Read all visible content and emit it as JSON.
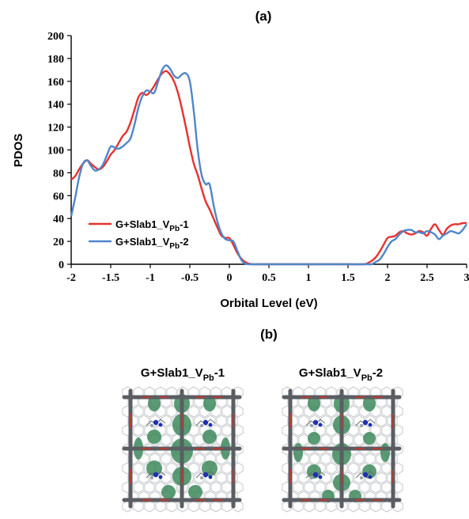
{
  "panel_a_label": "(a)",
  "panel_b_label": "(b)",
  "colors": {
    "series1": "#e8312f",
    "series2": "#4f86c9",
    "orbital_green": "#3e8a5c",
    "bond_red": "#c0392b",
    "frame_grey": "#5a5e63",
    "atom_blue": "#1f2fb0"
  },
  "chart_data": {
    "type": "line",
    "title": "",
    "xlabel": "Orbital Level (eV)",
    "ylabel": "PDOS",
    "xlim": [
      -2,
      3
    ],
    "ylim": [
      0,
      200
    ],
    "xticks": [
      -2,
      -1.5,
      -1,
      -0.5,
      0,
      0.5,
      1,
      1.5,
      2,
      2.5,
      3
    ],
    "yticks": [
      0,
      20,
      40,
      60,
      80,
      100,
      120,
      140,
      160,
      180,
      200
    ],
    "grid": false,
    "legend_position": "lower-left",
    "series": [
      {
        "name_parts": [
          "G+Slab1_V",
          "Pb",
          "-1"
        ],
        "color": "#e8312f",
        "x": [
          -2,
          -1.95,
          -1.9,
          -1.85,
          -1.8,
          -1.75,
          -1.7,
          -1.65,
          -1.6,
          -1.55,
          -1.5,
          -1.45,
          -1.4,
          -1.35,
          -1.3,
          -1.25,
          -1.2,
          -1.15,
          -1.1,
          -1.05,
          -1.0,
          -0.95,
          -0.9,
          -0.85,
          -0.8,
          -0.75,
          -0.7,
          -0.65,
          -0.6,
          -0.55,
          -0.5,
          -0.45,
          -0.4,
          -0.35,
          -0.3,
          -0.25,
          -0.2,
          -0.15,
          -0.1,
          -0.05,
          0,
          0.05,
          0.1,
          0.15,
          0.2,
          0.25,
          0.3,
          0.35,
          0.5,
          1.0,
          1.5,
          1.7,
          1.75,
          1.8,
          1.85,
          1.9,
          1.95,
          2.0,
          2.05,
          2.1,
          2.15,
          2.2,
          2.25,
          2.3,
          2.35,
          2.4,
          2.45,
          2.5,
          2.55,
          2.6,
          2.65,
          2.7,
          2.75,
          2.8,
          2.85,
          2.9,
          2.95,
          3.0
        ],
        "y": [
          74,
          77,
          83,
          88,
          91,
          88,
          85,
          83,
          85,
          90,
          96,
          100,
          106,
          112,
          116,
          124,
          135,
          146,
          150,
          148,
          151,
          156,
          162,
          167,
          169,
          166,
          160,
          150,
          136,
          120,
          103,
          88,
          78,
          66,
          55,
          48,
          40,
          32,
          25,
          23,
          23,
          17,
          10,
          5,
          2,
          0.5,
          0,
          0,
          0,
          0,
          0,
          0,
          1,
          3,
          6,
          11,
          17,
          23,
          24,
          25,
          28,
          29,
          27,
          26,
          27,
          29,
          28,
          25,
          31,
          35,
          30,
          26,
          31,
          34,
          35,
          35,
          36,
          36
        ]
      },
      {
        "name_parts": [
          "G+Slab1_V",
          "Pb",
          "-2"
        ],
        "color": "#4f86c9",
        "x": [
          -2,
          -1.95,
          -1.9,
          -1.85,
          -1.8,
          -1.75,
          -1.7,
          -1.65,
          -1.6,
          -1.55,
          -1.5,
          -1.45,
          -1.4,
          -1.35,
          -1.3,
          -1.25,
          -1.2,
          -1.15,
          -1.1,
          -1.05,
          -1.0,
          -0.95,
          -0.9,
          -0.85,
          -0.8,
          -0.75,
          -0.7,
          -0.65,
          -0.6,
          -0.55,
          -0.5,
          -0.45,
          -0.4,
          -0.35,
          -0.3,
          -0.25,
          -0.2,
          -0.15,
          -0.1,
          -0.05,
          0,
          0.05,
          0.1,
          0.15,
          0.2,
          0.25,
          0.3,
          0.35,
          0.5,
          1.0,
          1.5,
          1.7,
          1.75,
          1.8,
          1.85,
          1.9,
          1.95,
          2.0,
          2.05,
          2.1,
          2.15,
          2.2,
          2.25,
          2.3,
          2.35,
          2.4,
          2.45,
          2.5,
          2.55,
          2.6,
          2.65,
          2.7,
          2.75,
          2.8,
          2.85,
          2.9,
          2.95,
          3.0
        ],
        "y": [
          42,
          58,
          76,
          88,
          91,
          86,
          82,
          83,
          87,
          95,
          103,
          102,
          101,
          103,
          106,
          110,
          122,
          137,
          147,
          152,
          151,
          150,
          160,
          170,
          174,
          171,
          165,
          163,
          166,
          167,
          160,
          134,
          100,
          78,
          70,
          70,
          52,
          37,
          27,
          22,
          21,
          20,
          12,
          4,
          0.5,
          0,
          0,
          0,
          0,
          0,
          0,
          0,
          0,
          0,
          2,
          4,
          9,
          15,
          20,
          22,
          26,
          29,
          30,
          30,
          28,
          28,
          27,
          29,
          28,
          26,
          22,
          25,
          27,
          29,
          28,
          27,
          30,
          35
        ]
      }
    ]
  },
  "structures": [
    {
      "title_parts": [
        "G+Slab1_V",
        "Pb",
        "-1"
      ]
    },
    {
      "title_parts": [
        "G+Slab1_V",
        "Pb",
        "-2"
      ]
    }
  ]
}
